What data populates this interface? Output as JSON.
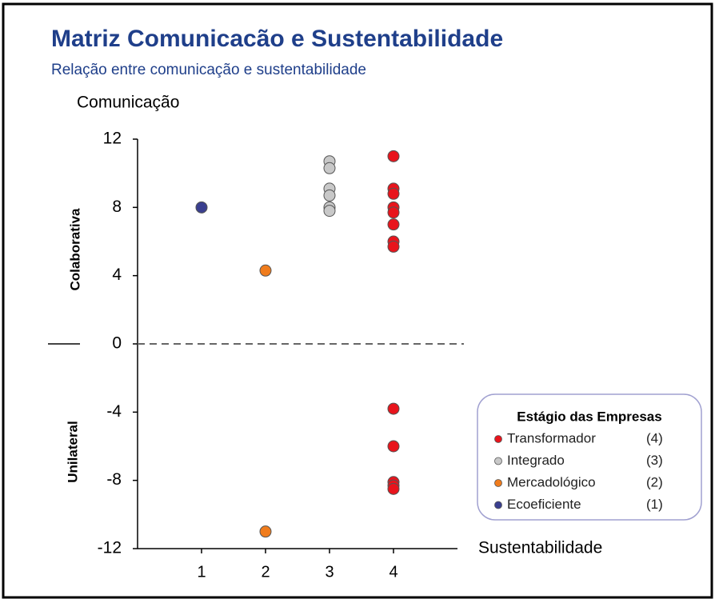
{
  "chart_data": {
    "type": "scatter",
    "title": "Matriz Comunicacão e Sustentabilidade",
    "subtitle": "Relação entre comunicação e sustentabilidade",
    "y_label": "Comunicação",
    "x_label": "Sustentabilidade",
    "y_upper_label": "Colaborativa",
    "y_lower_label": "Unilateral",
    "legend_title": "Estágio das Empresas",
    "xlim": [
      0,
      5
    ],
    "xticks": [
      1,
      2,
      3,
      4
    ],
    "ylim": [
      -12,
      12
    ],
    "yticks": [
      -12,
      -8,
      -4,
      0,
      4,
      8,
      12
    ],
    "series": [
      {
        "name": "Transformador",
        "code": "(4)",
        "color": "#e8141c",
        "x": [
          4,
          4,
          4,
          4,
          4,
          4,
          4,
          4,
          4,
          4,
          4,
          4,
          4
        ],
        "values": [
          11,
          9.1,
          8.8,
          8.0,
          7.7,
          7.0,
          6.0,
          5.7,
          -3.8,
          -6.0,
          -8.1,
          -8.3,
          -8.5
        ]
      },
      {
        "name": "Integrado",
        "code": "(3)",
        "color": "#c8c8c8",
        "x": [
          3,
          3,
          3,
          3,
          3,
          3
        ],
        "values": [
          10.7,
          10.3,
          9.1,
          8.7,
          8.0,
          7.8
        ]
      },
      {
        "name": "Mercadológico",
        "code": "(2)",
        "color": "#f07c1c",
        "x": [
          2,
          2
        ],
        "values": [
          4.3,
          -11
        ]
      },
      {
        "name": "Ecoeficiente",
        "code": "(1)",
        "color": "#3a3f8f",
        "x": [
          1
        ],
        "values": [
          8
        ]
      }
    ]
  }
}
